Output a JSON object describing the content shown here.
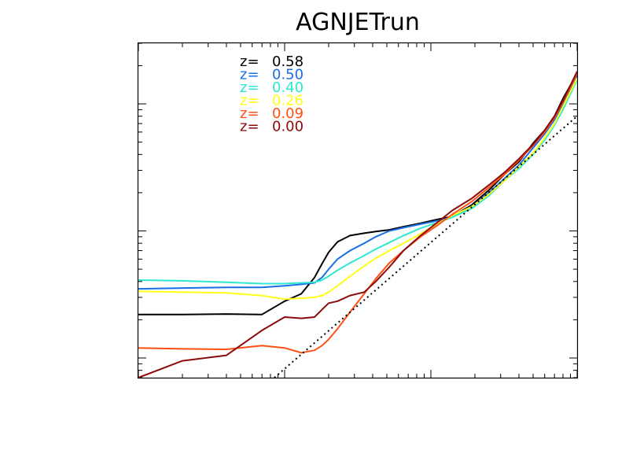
{
  "chart_data": {
    "type": "line",
    "title": "AGNJETrun",
    "xscale": "log",
    "yscale": "log",
    "xlim": [
      0.1,
      100
    ],
    "ylim": [
      0.7,
      300
    ],
    "grid": false,
    "legend_position": "top-left",
    "legend_prefix": "z=",
    "series": [
      {
        "name": "0.58",
        "color": "#000000",
        "x": [
          0.1,
          0.2,
          0.4,
          0.7,
          1.0,
          1.3,
          1.6,
          1.8,
          2.0,
          2.3,
          2.8,
          3.5,
          4.2,
          5.2,
          6.5,
          8.5,
          11,
          14,
          19,
          25,
          32,
          40,
          50,
          60,
          70,
          80,
          90,
          100
        ],
        "y": [
          2.2,
          2.2,
          2.22,
          2.2,
          2.8,
          3.2,
          4.3,
          5.5,
          6.8,
          8.2,
          9.2,
          9.6,
          9.9,
          10.2,
          10.8,
          11.5,
          12.3,
          13,
          16,
          21,
          28,
          35,
          49,
          62,
          80,
          110,
          140,
          170
        ]
      },
      {
        "name": "0.50",
        "color": "#1a6fe8",
        "x": [
          0.1,
          0.2,
          0.4,
          0.7,
          1.0,
          1.3,
          1.6,
          1.8,
          2.0,
          2.3,
          2.8,
          3.5,
          4.2,
          5.2,
          6.5,
          8.5,
          11,
          14,
          19,
          25,
          32,
          40,
          50,
          60,
          70,
          80,
          90,
          100
        ],
        "y": [
          3.5,
          3.55,
          3.6,
          3.6,
          3.7,
          3.8,
          3.9,
          4.3,
          5.0,
          6.0,
          7.0,
          8.0,
          9.0,
          10.0,
          10.6,
          11.3,
          12.0,
          12.8,
          15.5,
          20,
          26,
          33,
          45,
          58,
          75,
          100,
          130,
          165
        ]
      },
      {
        "name": "0.40",
        "color": "#2ee8d0",
        "x": [
          0.1,
          0.2,
          0.4,
          0.7,
          1.0,
          1.3,
          1.6,
          1.8,
          2.0,
          2.3,
          2.8,
          3.5,
          4.2,
          5.2,
          6.5,
          8.5,
          11,
          14,
          19,
          25,
          32,
          40,
          50,
          60,
          70,
          80,
          90,
          100
        ],
        "y": [
          4.1,
          4.05,
          3.95,
          3.85,
          3.85,
          3.9,
          3.95,
          4.1,
          4.4,
          4.9,
          5.6,
          6.4,
          7.2,
          8.1,
          9.2,
          10.5,
          11.6,
          12.8,
          15,
          19,
          25,
          31,
          40,
          52,
          68,
          90,
          120,
          155
        ]
      },
      {
        "name": "0.26",
        "color": "#ffff1a",
        "x": [
          0.1,
          0.2,
          0.4,
          0.7,
          1.0,
          1.3,
          1.6,
          1.8,
          2.0,
          2.3,
          2.8,
          3.5,
          4.2,
          5.2,
          6.5,
          8.5,
          11,
          14,
          19,
          25,
          32,
          40,
          50,
          60,
          70,
          80,
          90,
          100
        ],
        "y": [
          3.35,
          3.3,
          3.25,
          3.1,
          2.9,
          2.95,
          3.0,
          3.1,
          3.3,
          3.7,
          4.4,
          5.3,
          6.1,
          7.0,
          8.0,
          9.5,
          11.3,
          13.2,
          15.5,
          19.5,
          25,
          32,
          41,
          54,
          70,
          95,
          125,
          160
        ]
      },
      {
        "name": "0.09",
        "color": "#ff5014",
        "x": [
          0.1,
          0.2,
          0.4,
          0.7,
          1.0,
          1.3,
          1.6,
          1.8,
          2.0,
          2.3,
          2.8,
          3.5,
          4.2,
          5.2,
          6.5,
          8.5,
          11,
          14,
          19,
          25,
          32,
          40,
          50,
          60,
          70,
          80,
          90,
          100
        ],
        "y": [
          1.2,
          1.18,
          1.17,
          1.25,
          1.2,
          1.1,
          1.15,
          1.25,
          1.4,
          1.7,
          2.3,
          3.2,
          4.2,
          5.6,
          7.0,
          9.0,
          11.0,
          13.5,
          17,
          22,
          28,
          36,
          47,
          60,
          78,
          103,
          135,
          175
        ]
      },
      {
        "name": "0.00",
        "color": "#8c0a0a",
        "x": [
          0.1,
          0.2,
          0.4,
          0.7,
          1.0,
          1.3,
          1.6,
          1.8,
          2.0,
          2.3,
          2.8,
          3.5,
          4.2,
          5.2,
          6.5,
          8.5,
          11,
          14,
          19,
          25,
          32,
          40,
          50,
          60,
          70,
          80,
          90,
          100
        ],
        "y": [
          0.7,
          0.95,
          1.05,
          1.65,
          2.1,
          2.05,
          2.1,
          2.4,
          2.7,
          2.8,
          3.1,
          3.3,
          4.0,
          5.2,
          7.0,
          9.2,
          11.6,
          14.5,
          18,
          23,
          29,
          37,
          48,
          62,
          80,
          106,
          140,
          180
        ]
      }
    ],
    "reference_line": {
      "style": "dotted",
      "color": "#000000",
      "x": [
        0.85,
        100
      ],
      "y": [
        0.7,
        80
      ]
    }
  }
}
